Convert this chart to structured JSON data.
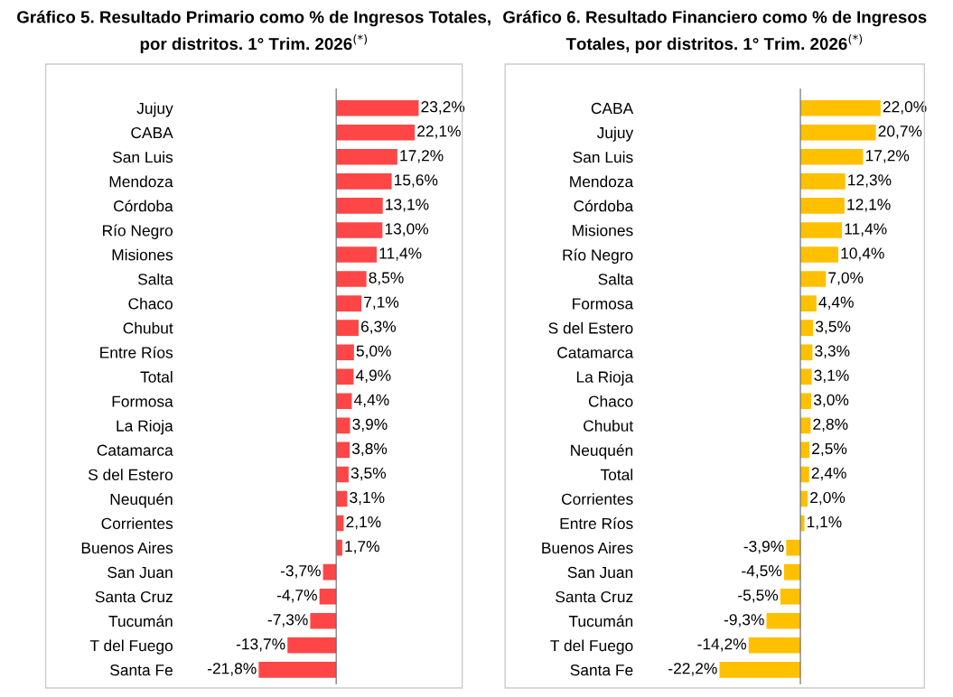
{
  "chart_data": [
    {
      "type": "bar",
      "orientation": "horizontal",
      "title": "Gráfico 5. Resultado Primario como % de Ingresos Totales, por distritos. 1° Trim. 2026$^{(*)}$",
      "categories": [
        "Jujuy",
        "CABA",
        "San Luis",
        "Mendoza",
        "Córdoba",
        "Río Negro",
        "Misiones",
        "Salta",
        "Chaco",
        "Chubut",
        "Entre Ríos",
        "Total",
        "Formosa",
        "La Rioja",
        "Catamarca",
        "S del Estero",
        "Neuquén",
        "Corrientes",
        "Buenos Aires",
        "San Juan",
        "Santa Cruz",
        "Tucumán",
        "T del Fuego",
        "Santa Fe"
      ],
      "values": [
        23.2,
        22.1,
        17.2,
        15.6,
        13.1,
        13.0,
        11.4,
        8.5,
        7.1,
        6.3,
        5.0,
        4.9,
        4.4,
        3.9,
        3.8,
        3.5,
        3.1,
        2.1,
        1.7,
        -3.7,
        -4.7,
        -7.3,
        -13.7,
        -21.8
      ],
      "value_labels": [
        "23,2%",
        "22,1%",
        "17,2%",
        "15,6%",
        "13,1%",
        "13,0%",
        "11,4%",
        "8,5%",
        "7,1%",
        "6,3%",
        "5,0%",
        "4,9%",
        "4,4%",
        "3,9%",
        "3,8%",
        "3,5%",
        "3,1%",
        "2,1%",
        "1,7%",
        "-3,7%",
        "-4,7%",
        "-7,3%",
        "-13,7%",
        "-21,8%"
      ],
      "color": "#ff4646",
      "grid": false,
      "legend": false
    },
    {
      "type": "bar",
      "orientation": "horizontal",
      "title": "Gráfico 6. Resultado Financiero como % de Ingresos Totales, por distritos. 1° Trim. 2026$^{(*)}$",
      "categories": [
        "CABA",
        "Jujuy",
        "San Luis",
        "Mendoza",
        "Córdoba",
        "Misiones",
        "Río Negro",
        "Salta",
        "Formosa",
        "S del Estero",
        "Catamarca",
        "La Rioja",
        "Chaco",
        "Chubut",
        "Neuquén",
        "Total",
        "Corrientes",
        "Entre Ríos",
        "Buenos Aires",
        "San Juan",
        "Santa Cruz",
        "Tucumán",
        "T del Fuego",
        "Santa Fe"
      ],
      "values": [
        22.0,
        20.7,
        17.2,
        12.3,
        12.1,
        11.4,
        10.4,
        7.0,
        4.4,
        3.5,
        3.3,
        3.1,
        3.0,
        2.8,
        2.5,
        2.4,
        2.0,
        1.1,
        -3.9,
        -4.5,
        -5.5,
        -9.3,
        -14.2,
        -22.2
      ],
      "value_labels": [
        "22,0%",
        "20,7%",
        "17,2%",
        "12,3%",
        "12,1%",
        "11,4%",
        "10,4%",
        "7,0%",
        "4,4%",
        "3,5%",
        "3,3%",
        "3,1%",
        "3,0%",
        "2,8%",
        "2,5%",
        "2,4%",
        "2,0%",
        "1,1%",
        "-3,9%",
        "-4,5%",
        "-5,5%",
        "-9,3%",
        "-14,2%",
        "-22,2%"
      ],
      "color": "#ffc000",
      "grid": false,
      "legend": false
    }
  ]
}
